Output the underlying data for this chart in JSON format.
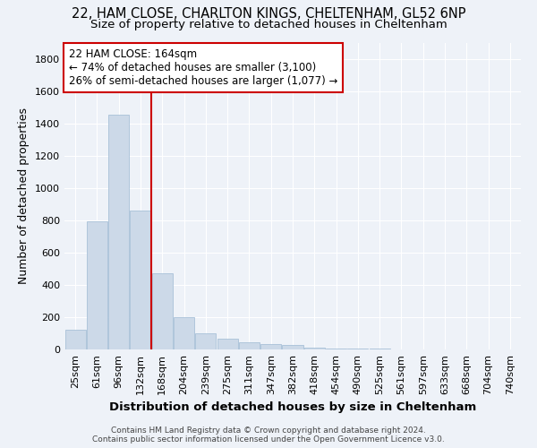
{
  "title_line1": "22, HAM CLOSE, CHARLTON KINGS, CHELTENHAM, GL52 6NP",
  "title_line2": "Size of property relative to detached houses in Cheltenham",
  "xlabel": "Distribution of detached houses by size in Cheltenham",
  "ylabel": "Number of detached properties",
  "categories": [
    "25sqm",
    "61sqm",
    "96sqm",
    "132sqm",
    "168sqm",
    "204sqm",
    "239sqm",
    "275sqm",
    "311sqm",
    "347sqm",
    "382sqm",
    "418sqm",
    "454sqm",
    "490sqm",
    "525sqm",
    "561sqm",
    "597sqm",
    "633sqm",
    "668sqm",
    "704sqm",
    "740sqm"
  ],
  "values": [
    120,
    795,
    1455,
    862,
    470,
    200,
    100,
    65,
    45,
    35,
    25,
    12,
    5,
    4,
    3,
    2,
    2,
    1,
    1,
    1,
    2
  ],
  "bar_color": "#ccd9e8",
  "bar_edgecolor": "#a8c0d8",
  "vline_color": "#cc0000",
  "vline_pos": 3.5,
  "annotation_text": "22 HAM CLOSE: 164sqm\n← 74% of detached houses are smaller (3,100)\n26% of semi-detached houses are larger (1,077) →",
  "annotation_box_color": "#ffffff",
  "annotation_box_edgecolor": "#cc0000",
  "footer_line1": "Contains HM Land Registry data © Crown copyright and database right 2024.",
  "footer_line2": "Contains public sector information licensed under the Open Government Licence v3.0.",
  "ylim": [
    0,
    1900
  ],
  "yticks": [
    0,
    200,
    400,
    600,
    800,
    1000,
    1200,
    1400,
    1600,
    1800
  ],
  "background_color": "#eef2f8",
  "grid_color": "#ffffff",
  "title_fontsize": 10.5,
  "subtitle_fontsize": 9.5,
  "axis_label_fontsize": 9,
  "tick_fontsize": 8,
  "footer_fontsize": 6.5
}
